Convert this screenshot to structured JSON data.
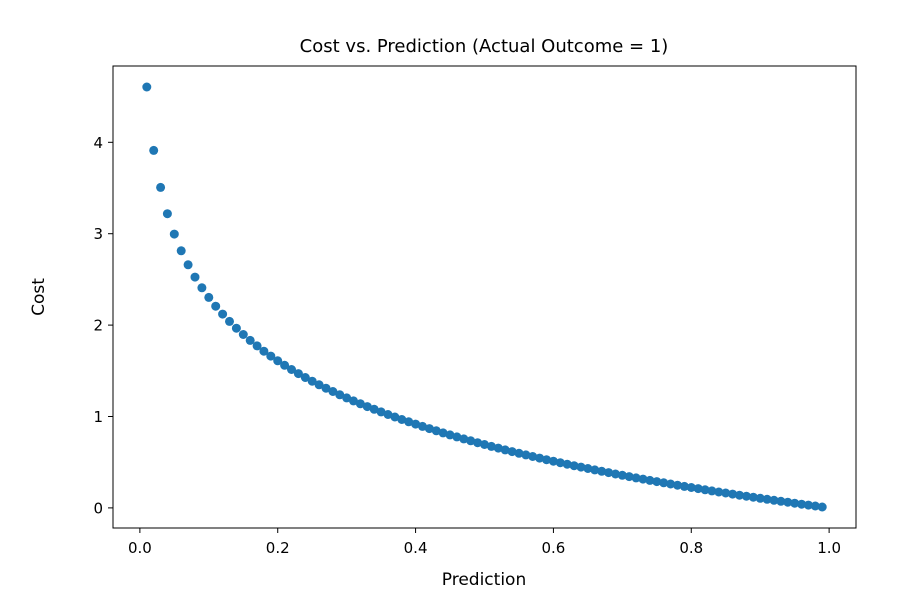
{
  "chart_data": {
    "type": "scatter",
    "title": "Cost vs. Prediction (Actual Outcome = 1)",
    "xlabel": "Prediction",
    "ylabel": "Cost",
    "marker_color": "#1f77b4",
    "grid": false,
    "legend": null,
    "xlim": [
      -0.039,
      1.039
    ],
    "ylim": [
      -0.22,
      4.835
    ],
    "xticks": [
      0.0,
      0.2,
      0.4,
      0.6,
      0.8,
      1.0
    ],
    "xtick_labels": [
      "0.0",
      "0.2",
      "0.4",
      "0.6",
      "0.8",
      "1.0"
    ],
    "yticks": [
      0,
      1,
      2,
      3,
      4
    ],
    "ytick_labels": [
      "0",
      "1",
      "2",
      "3",
      "4"
    ],
    "x": [
      0.01,
      0.02,
      0.03,
      0.04,
      0.05,
      0.06,
      0.07,
      0.08,
      0.09,
      0.1,
      0.11,
      0.12,
      0.13,
      0.14,
      0.15,
      0.16,
      0.17,
      0.18,
      0.19,
      0.2,
      0.21,
      0.22,
      0.23,
      0.24,
      0.25,
      0.26,
      0.27,
      0.28,
      0.29,
      0.3,
      0.31,
      0.32,
      0.33,
      0.34,
      0.35,
      0.36,
      0.37,
      0.38,
      0.39,
      0.4,
      0.41,
      0.42,
      0.43,
      0.44,
      0.45,
      0.46,
      0.47,
      0.48,
      0.49,
      0.5,
      0.51,
      0.52,
      0.53,
      0.54,
      0.55,
      0.56,
      0.57,
      0.58,
      0.59,
      0.6,
      0.61,
      0.62,
      0.63,
      0.64,
      0.65,
      0.66,
      0.67,
      0.68,
      0.69,
      0.7,
      0.71,
      0.72,
      0.73,
      0.74,
      0.75,
      0.76,
      0.77,
      0.78,
      0.79,
      0.8,
      0.81,
      0.82,
      0.83,
      0.84,
      0.85,
      0.86,
      0.87,
      0.88,
      0.89,
      0.9,
      0.91,
      0.92,
      0.93,
      0.94,
      0.95,
      0.96,
      0.97,
      0.98,
      0.99
    ],
    "y": [
      4.6052,
      3.912,
      3.5066,
      3.2189,
      2.9957,
      2.8134,
      2.6593,
      2.5257,
      2.4079,
      2.3026,
      2.2073,
      2.1203,
      2.0402,
      1.9661,
      1.8971,
      1.8326,
      1.772,
      1.7148,
      1.6607,
      1.6094,
      1.5606,
      1.5141,
      1.4697,
      1.4271,
      1.3863,
      1.3471,
      1.3093,
      1.273,
      1.2379,
      1.204,
      1.1712,
      1.1394,
      1.1087,
      1.0788,
      1.0498,
      1.0217,
      0.9943,
      0.9676,
      0.9416,
      0.9163,
      0.8916,
      0.8675,
      0.844,
      0.821,
      0.7985,
      0.7765,
      0.755,
      0.734,
      0.7133,
      0.6931,
      0.6733,
      0.6539,
      0.6349,
      0.6162,
      0.5978,
      0.5798,
      0.5621,
      0.5447,
      0.5276,
      0.5108,
      0.4943,
      0.478,
      0.462,
      0.4463,
      0.4308,
      0.4155,
      0.4005,
      0.3857,
      0.3711,
      0.3567,
      0.3425,
      0.3285,
      0.3147,
      0.3011,
      0.2877,
      0.2744,
      0.2614,
      0.2485,
      0.2357,
      0.2231,
      0.2107,
      0.1985,
      0.1863,
      0.1744,
      0.1625,
      0.1508,
      0.1393,
      0.1278,
      0.1165,
      0.1054,
      0.0943,
      0.0834,
      0.0726,
      0.0619,
      0.0513,
      0.0408,
      0.0305,
      0.0202,
      0.0101
    ]
  }
}
